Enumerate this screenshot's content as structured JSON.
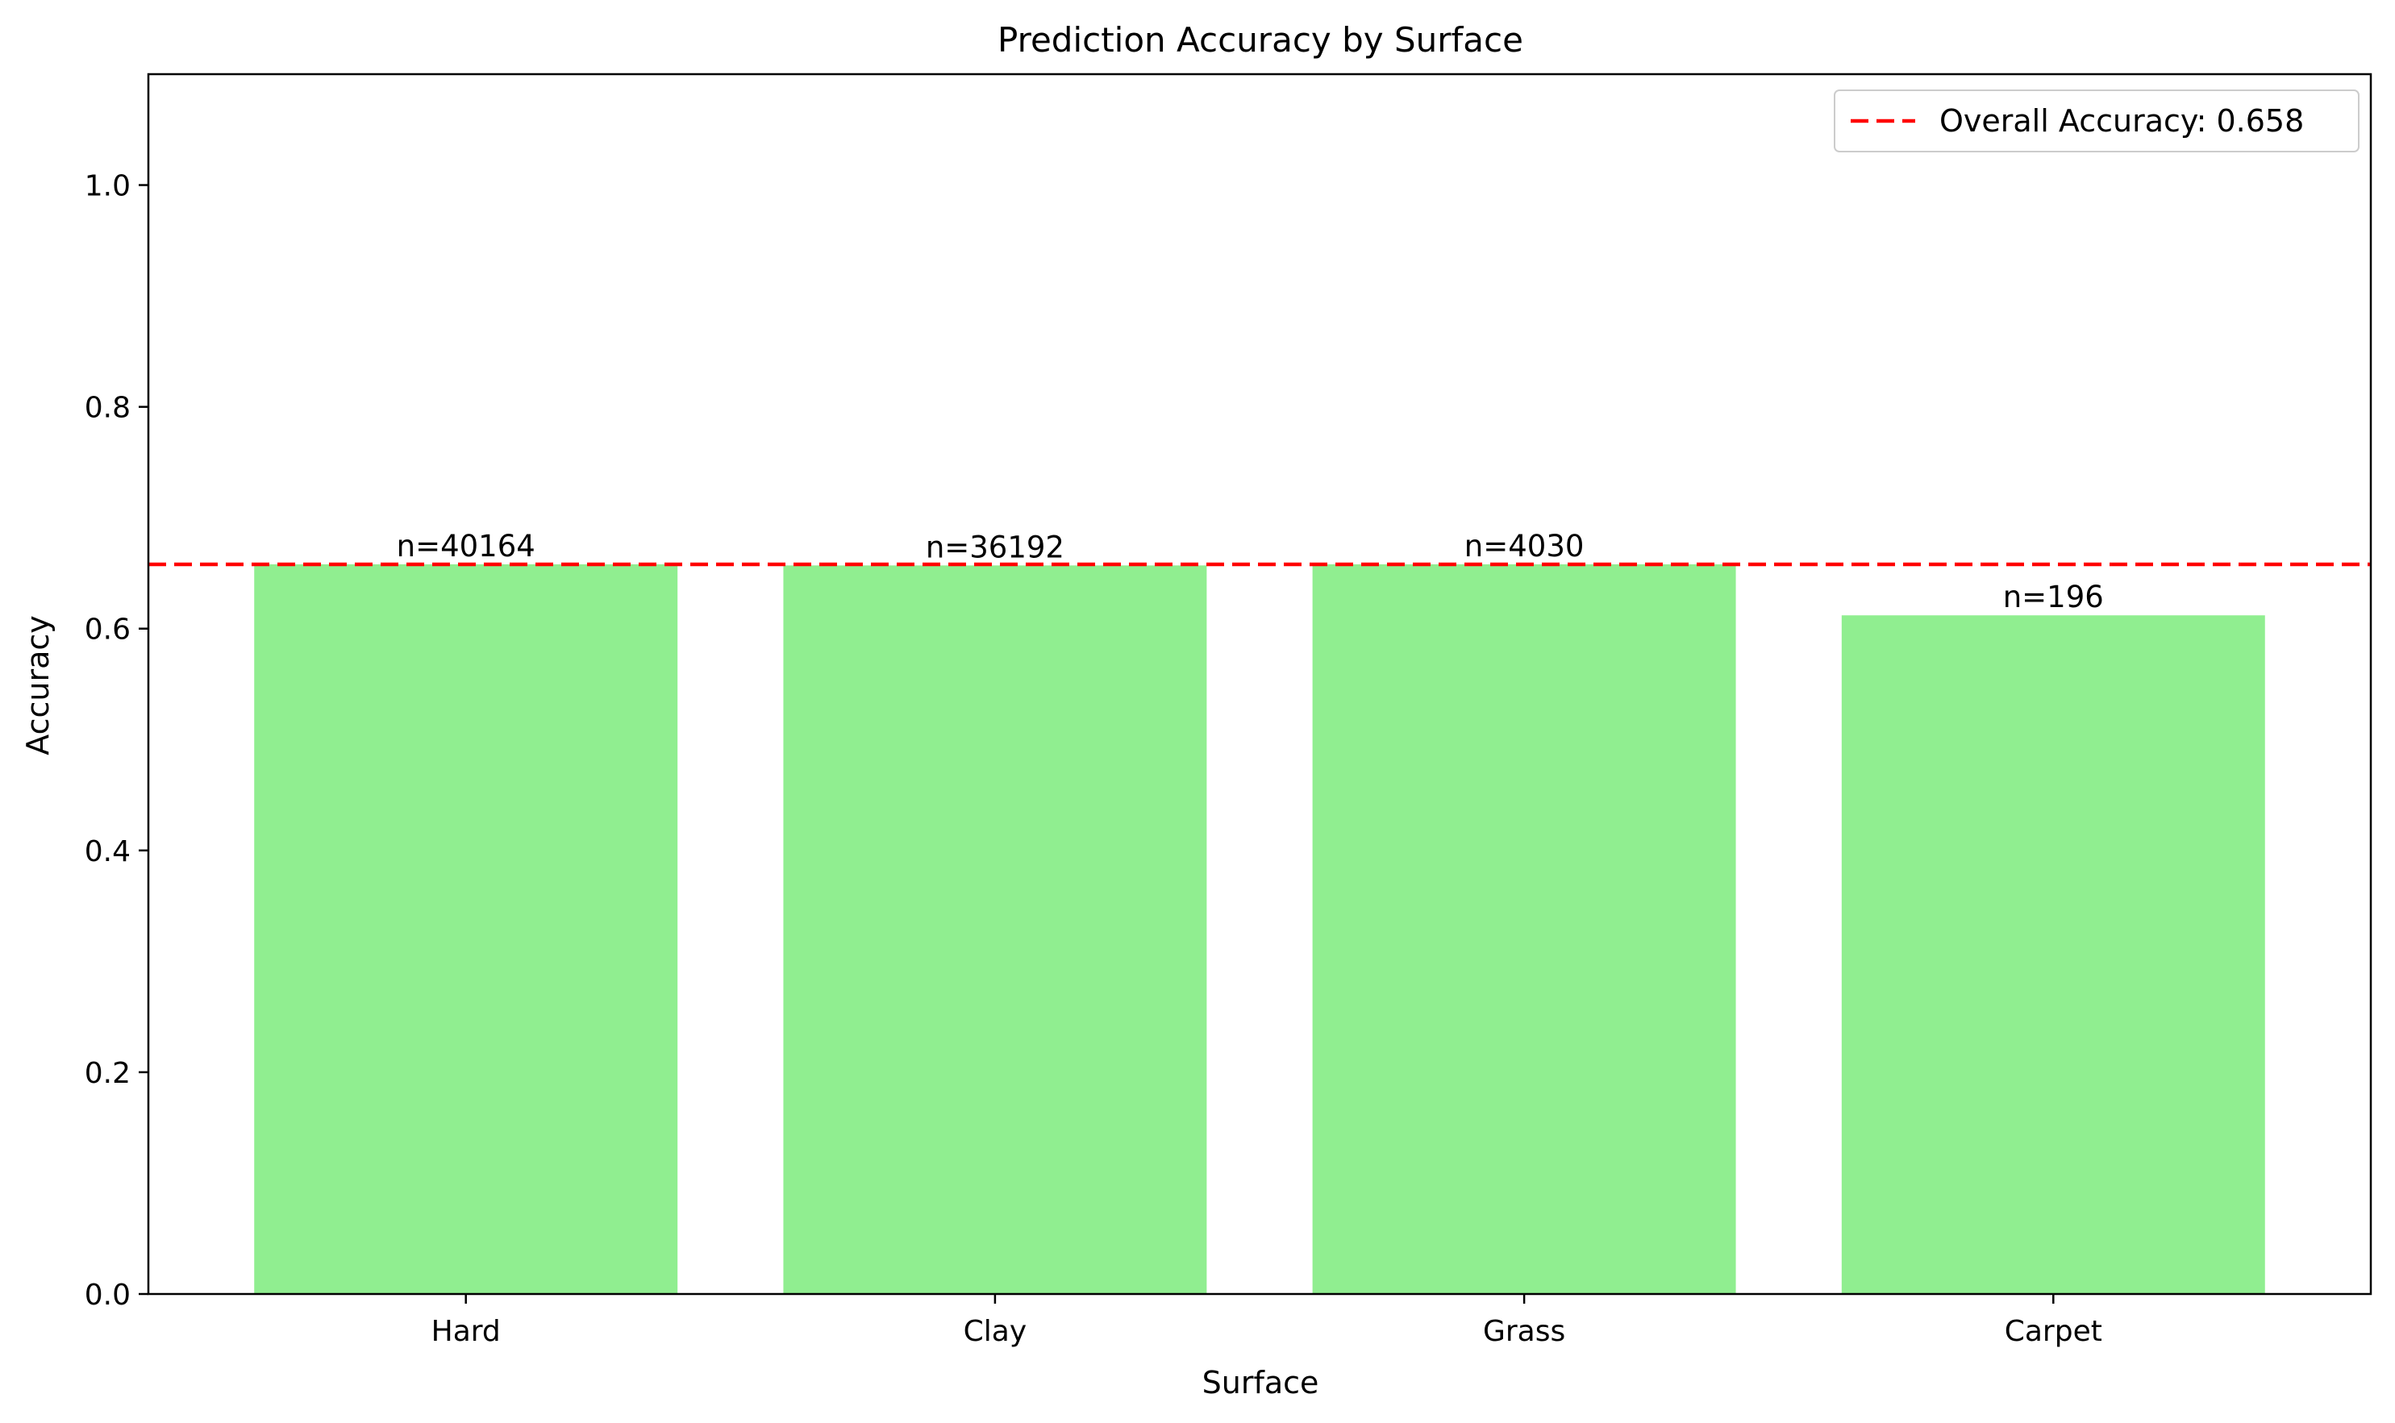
{
  "chart_data": {
    "type": "bar",
    "title": "Prediction Accuracy by Surface",
    "xlabel": "Surface",
    "ylabel": "Accuracy",
    "categories": [
      "Hard",
      "Clay",
      "Grass",
      "Carpet"
    ],
    "values": [
      0.658,
      0.657,
      0.658,
      0.612
    ],
    "bar_labels": [
      "n=40164",
      "n=36192",
      "n=4030",
      "n=196"
    ],
    "ylim": [
      0,
      1.1
    ],
    "yticks": [
      0.0,
      0.2,
      0.4,
      0.6,
      0.8,
      1.0
    ],
    "ytick_labels": [
      "0.0",
      "0.2",
      "0.4",
      "0.6",
      "0.8",
      "1.0"
    ],
    "reference_line": {
      "value": 0.658,
      "label": "Overall Accuracy: 0.658",
      "style": "dashed"
    },
    "legend_position": "top-right",
    "grid": false,
    "colors": {
      "bar": "#90ee90",
      "reference_line": "#ff0000",
      "axes": "#000000"
    }
  }
}
